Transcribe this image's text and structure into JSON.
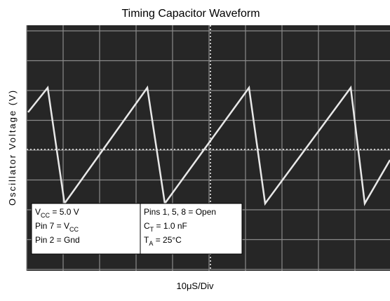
{
  "chart_data": {
    "type": "line",
    "title": "Timing Capacitor Waveform",
    "xlabel": "10μS/Div",
    "ylabel": "Oscillator Voltage (V)",
    "annotations": [
      [
        {
          "text": "V",
          "sub": "CC",
          "rest": " = 5.0 V"
        },
        {
          "text": "Pin 7 = V",
          "sub": "CC",
          "rest": ""
        },
        {
          "text": "Pin 2 = Gnd",
          "sub": "",
          "rest": ""
        }
      ],
      [
        {
          "text": "Pins 1, 5, 8 = Open",
          "sub": "",
          "rest": ""
        },
        {
          "text": "C",
          "sub": "T",
          "rest": " = 1.0 nF"
        },
        {
          "text": "T",
          "sub": "A",
          "rest": " = 25°C"
        }
      ]
    ]
  }
}
